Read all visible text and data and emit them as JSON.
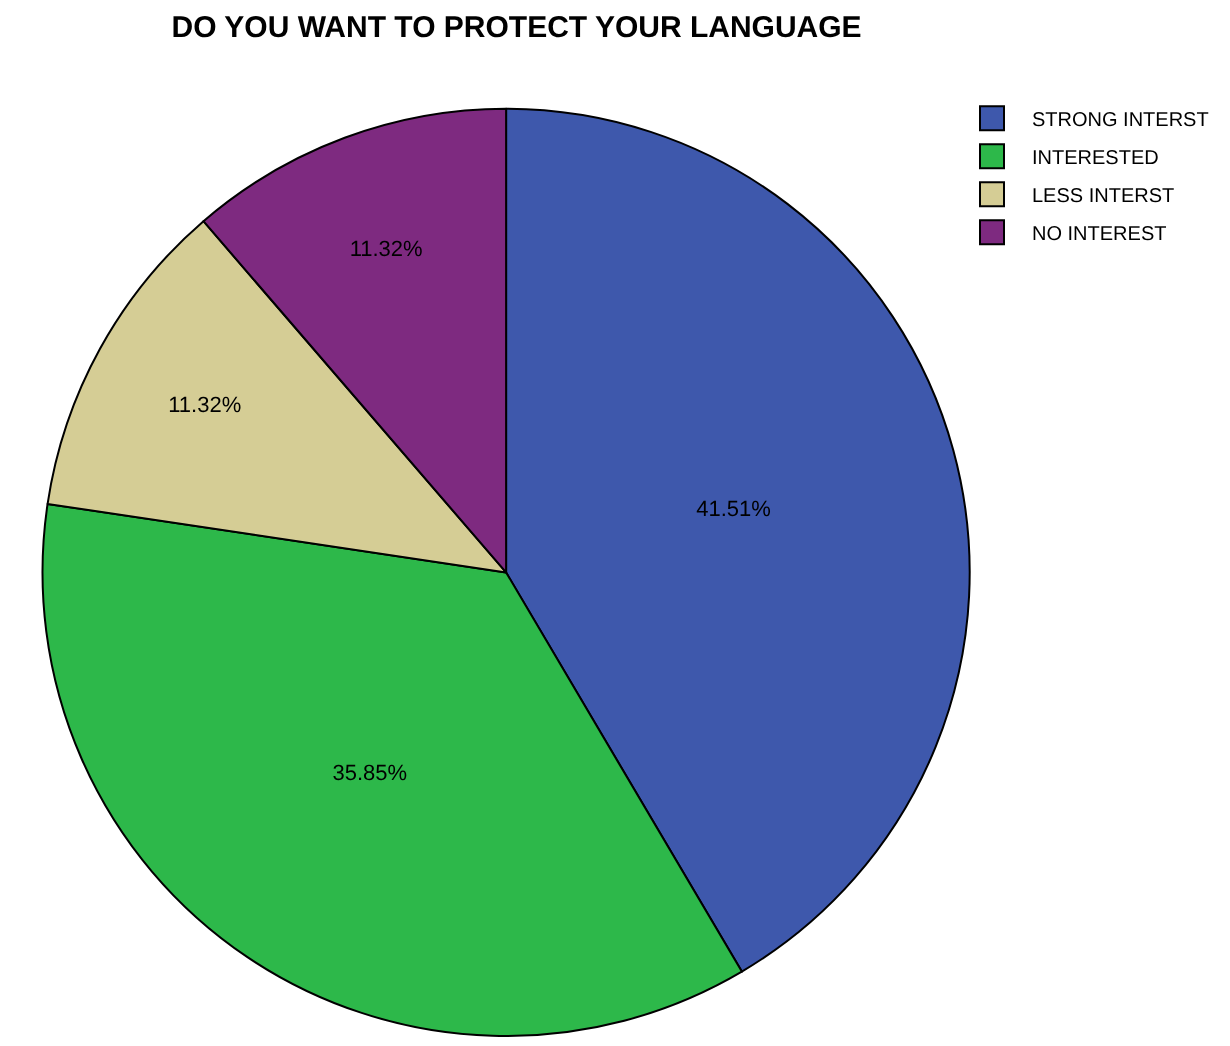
{
  "chart_data": {
    "type": "pie",
    "title": "DO YOU WANT TO PROTECT YOUR LANGUAGE",
    "categories": [
      "STRONG INTERST",
      "INTERESTED",
      "LESS INTERST",
      "NO INTEREST"
    ],
    "values": [
      41.51,
      35.85,
      11.32,
      11.32
    ],
    "value_labels": [
      "41.51%",
      "35.85%",
      "11.32%",
      "11.32%"
    ],
    "colors": [
      "#3e58ac",
      "#2db84a",
      "#d5cd95",
      "#7e2a80"
    ],
    "legend": "top right"
  }
}
